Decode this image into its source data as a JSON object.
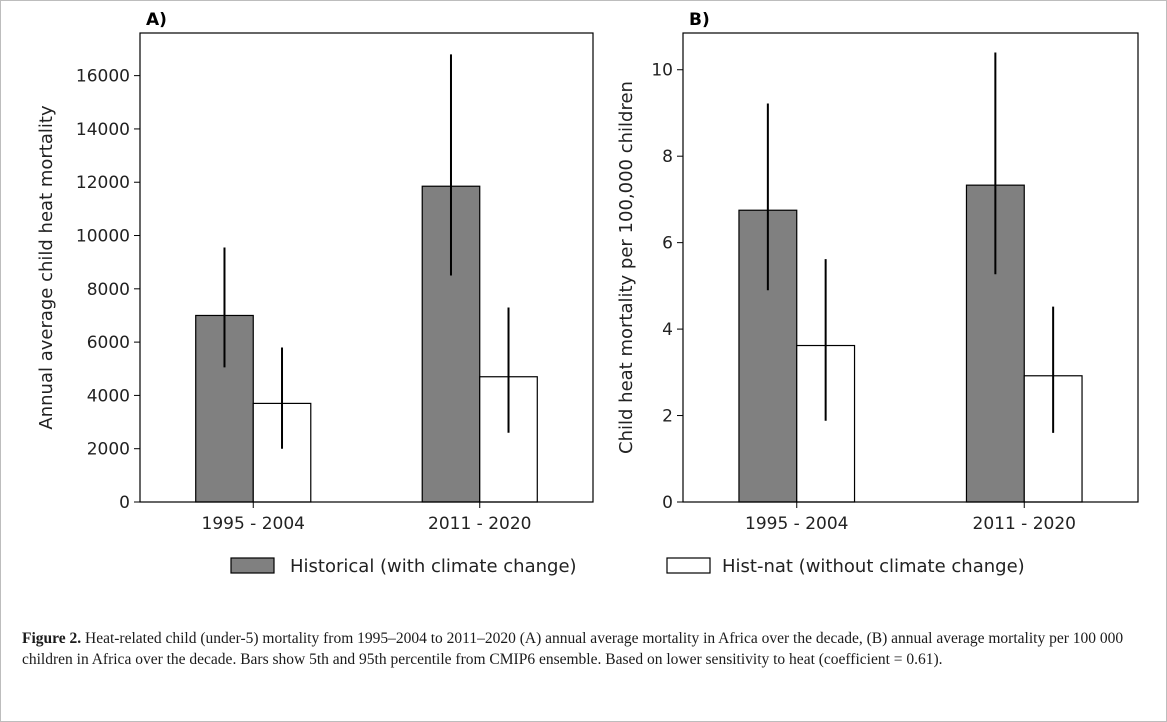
{
  "figure": {
    "caption_label": "Figure 2.",
    "caption_text": "Heat-related child (under-5) mortality from 1995–2004 to 2011–2020 (A) annual average mortality in Africa over the decade, (B) annual average mortality per 100 000 children in Africa over the decade. Bars show 5th and 95th percentile from CMIP6 ensemble. Based on lower sensitivity to heat (coefficient = 0.61)."
  },
  "legend": [
    {
      "name": "Historical (with climate change)",
      "color": "#808080"
    },
    {
      "name": "Hist-nat (without climate change)",
      "color": "#ffffff"
    }
  ],
  "chart_data": [
    {
      "type": "bar",
      "panel_label": "A)",
      "categories": [
        "1995 - 2004",
        "2011 - 2020"
      ],
      "ylabel": "Annual average child heat mortality",
      "ylim": [
        0,
        17600
      ],
      "yticks": [
        0,
        2000,
        4000,
        6000,
        8000,
        10000,
        12000,
        14000,
        16000
      ],
      "series": [
        {
          "name": "Historical (with climate change)",
          "values": [
            7000,
            11850
          ],
          "low": [
            5050,
            8500
          ],
          "high": [
            9550,
            16800
          ]
        },
        {
          "name": "Hist-nat (without climate change)",
          "values": [
            3700,
            4700
          ],
          "low": [
            2000,
            2600
          ],
          "high": [
            5800,
            7300
          ]
        }
      ]
    },
    {
      "type": "bar",
      "panel_label": "B)",
      "categories": [
        "1995 - 2004",
        "2011 - 2020"
      ],
      "ylabel": "Child heat mortality per 100,000 children",
      "ylim": [
        0,
        10.85
      ],
      "yticks": [
        0,
        2,
        4,
        6,
        8,
        10
      ],
      "series": [
        {
          "name": "Historical (with climate change)",
          "values": [
            6.75,
            7.33
          ],
          "low": [
            4.9,
            5.27
          ],
          "high": [
            9.22,
            10.4
          ]
        },
        {
          "name": "Hist-nat (without climate change)",
          "values": [
            3.62,
            2.92
          ],
          "low": [
            1.88,
            1.6
          ],
          "high": [
            5.62,
            4.52
          ]
        }
      ]
    }
  ]
}
